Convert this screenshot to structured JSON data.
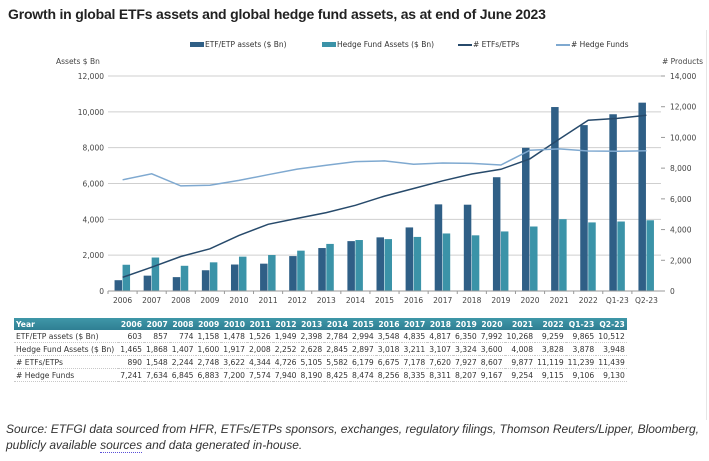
{
  "page": {
    "title": "Growth in global ETFs assets and global hedge fund assets, as at end of June 2023",
    "source_prefix": "Source: ETFGI data sourced from HFR, ETFs/ETPs sponsors, exchanges, regulatory filings, Thomson Reuters/Lipper, Bloomberg, publicly available ",
    "source_link": "sources",
    "source_suffix": " and data generated in-house."
  },
  "colors": {
    "etf_assets": "#2f5f86",
    "hedge_assets": "#3b93a8",
    "etf_count_line": "#274a6b",
    "hedge_count_line": "#7fa9d0",
    "gridline": "#cfcfcf",
    "table_header": "#3589a0"
  },
  "legend": [
    {
      "label": "ETF/ETP assets ($ Bn)",
      "kind": "bar",
      "color": "#2f5f86"
    },
    {
      "label": "Hedge Fund Assets ($ Bn)",
      "kind": "bar",
      "color": "#3b93a8"
    },
    {
      "label": "# ETFs/ETPs",
      "kind": "line",
      "color": "#274a6b"
    },
    {
      "label": "# Hedge Funds",
      "kind": "line",
      "color": "#7fa9d0"
    }
  ],
  "chart_data": {
    "type": "bar",
    "title": "Growth in global ETFs assets and global hedge fund assets, as at end of June 2023",
    "categories": [
      "2006",
      "2007",
      "2008",
      "2009",
      "2010",
      "2011",
      "2012",
      "2013",
      "2014",
      "2015",
      "2016",
      "2017",
      "2018",
      "2019",
      "2020",
      "2021",
      "2022",
      "Q1-23",
      "Q2-23"
    ],
    "ylabel": "Assets $ Bn",
    "y2label": "# Products",
    "ylim": [
      0,
      12000
    ],
    "y2lim": [
      0,
      14000
    ],
    "yticks": [
      "0",
      "2,000",
      "4,000",
      "6,000",
      "8,000",
      "10,000",
      "12,000"
    ],
    "y2ticks": [
      "0",
      "2,000",
      "4,000",
      "6,000",
      "8,000",
      "10,000",
      "12,000",
      "14,000"
    ],
    "grid": true,
    "legend_position": "top",
    "series": [
      {
        "name": "ETF/ETP assets ($ Bn)",
        "type": "bar",
        "axis": "left",
        "values": [
          603,
          857,
          774,
          1158,
          1478,
          1526,
          1949,
          2398,
          2784,
          2994,
          3548,
          4835,
          4817,
          6350,
          7992,
          10268,
          9259,
          9865,
          10512
        ]
      },
      {
        "name": "Hedge Fund Assets ($ Bn)",
        "type": "bar",
        "axis": "left",
        "values": [
          1465,
          1868,
          1407,
          1600,
          1917,
          2008,
          2252,
          2628,
          2845,
          2897,
          3018,
          3211,
          3107,
          3324,
          3600,
          4008,
          3828,
          3878,
          3948
        ]
      },
      {
        "name": "# ETFs/ETPs",
        "type": "line",
        "axis": "right",
        "values": [
          890,
          1548,
          2244,
          2748,
          3622,
          4344,
          4726,
          5105,
          5582,
          6179,
          6675,
          7178,
          7620,
          7927,
          8607,
          9877,
          11119,
          11239,
          11439
        ]
      },
      {
        "name": "# Hedge Funds",
        "type": "line",
        "axis": "right",
        "values": [
          7241,
          7634,
          6845,
          6883,
          7200,
          7574,
          7940,
          8190,
          8425,
          8474,
          8256,
          8335,
          8311,
          8207,
          9167,
          9254,
          9115,
          9106,
          9130
        ]
      }
    ]
  },
  "table": {
    "header_label": "Year",
    "columns": [
      "2006",
      "2007",
      "2008",
      "2009",
      "2010",
      "2011",
      "2012",
      "2013",
      "2014",
      "2015",
      "2016",
      "2017",
      "2018",
      "2019",
      "2020",
      "2021",
      "2022",
      "Q1-23",
      "Q2-23"
    ],
    "rows": [
      {
        "label": "ETF/ETP assets ($ Bn)",
        "cells": [
          "603",
          "857",
          "774",
          "1,158",
          "1,478",
          "1,526",
          "1,949",
          "2,398",
          "2,784",
          "2,994",
          "3,548",
          "4,835",
          "4,817",
          "6,350",
          "7,992",
          "10,268",
          "9,259",
          "9,865",
          "10,512"
        ]
      },
      {
        "label": "Hedge Fund Assets ($ Bn)",
        "cells": [
          "1,465",
          "1,868",
          "1,407",
          "1,600",
          "1,917",
          "2,008",
          "2,252",
          "2,628",
          "2,845",
          "2,897",
          "3,018",
          "3,211",
          "3,107",
          "3,324",
          "3,600",
          "4,008",
          "3,828",
          "3,878",
          "3,948"
        ]
      },
      {
        "label": "# ETFs/ETPs",
        "cells": [
          "890",
          "1,548",
          "2,244",
          "2,748",
          "3,622",
          "4,344",
          "4,726",
          "5,105",
          "5,582",
          "6,179",
          "6,675",
          "7,178",
          "7,620",
          "7,927",
          "8,607",
          "9,877",
          "11,119",
          "11,239",
          "11,439"
        ]
      },
      {
        "label": "# Hedge Funds",
        "cells": [
          "7,241",
          "7,634",
          "6,845",
          "6,883",
          "7,200",
          "7,574",
          "7,940",
          "8,190",
          "8,425",
          "8,474",
          "8,256",
          "8,335",
          "8,311",
          "8,207",
          "9,167",
          "9,254",
          "9,115",
          "9,106",
          "9,130"
        ]
      }
    ]
  }
}
